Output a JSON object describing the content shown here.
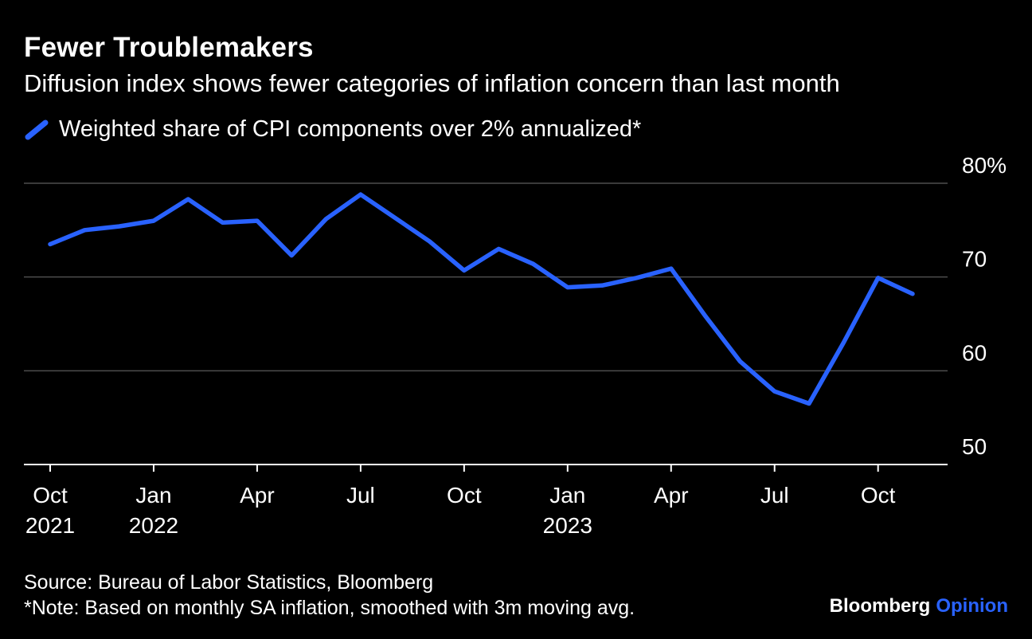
{
  "header": {
    "title": "Fewer Troublemakers",
    "subtitle": "Diffusion index shows fewer categories of inflation concern than last month"
  },
  "legend": {
    "label": "Weighted share of CPI components over 2% annualized*"
  },
  "chart_data": {
    "type": "line",
    "title": "Fewer Troublemakers",
    "subtitle": "Diffusion index shows fewer categories of inflation concern than last month",
    "xlabel": "",
    "ylabel": "Weighted share of CPI components over 2% annualized (%)",
    "ylim": [
      50,
      80
    ],
    "grid": "horizontal",
    "legend_position": "top-left",
    "y_axis_side": "right",
    "x": [
      "Oct 2021",
      "Nov 2021",
      "Dec 2021",
      "Jan 2022",
      "Feb 2022",
      "Mar 2022",
      "Apr 2022",
      "May 2022",
      "Jun 2022",
      "Jul 2022",
      "Aug 2022",
      "Sep 2022",
      "Oct 2022",
      "Nov 2022",
      "Dec 2022",
      "Jan 2023",
      "Feb 2023",
      "Mar 2023",
      "Apr 2023",
      "May 2023",
      "Jun 2023",
      "Jul 2023",
      "Aug 2023",
      "Sep 2023",
      "Oct 2023",
      "Nov 2023"
    ],
    "series": [
      {
        "name": "Weighted share of CPI components over 2% annualized*",
        "color": "#2962FF",
        "values": [
          73.5,
          75.0,
          75.4,
          76.0,
          78.3,
          75.8,
          76.0,
          72.3,
          76.2,
          78.8,
          76.3,
          73.8,
          70.7,
          73.0,
          71.4,
          68.9,
          69.1,
          69.9,
          70.9,
          65.8,
          61.0,
          57.8,
          56.5,
          63.0,
          69.9,
          68.2
        ]
      }
    ],
    "y_ticks": [
      {
        "value": 80,
        "label": "80%"
      },
      {
        "value": 70,
        "label": "70"
      },
      {
        "value": 60,
        "label": "60"
      },
      {
        "value": 50,
        "label": "50"
      }
    ],
    "x_ticks": [
      {
        "index": 0,
        "label": "Oct",
        "year": "2021"
      },
      {
        "index": 3,
        "label": "Jan",
        "year": "2022"
      },
      {
        "index": 6,
        "label": "Apr"
      },
      {
        "index": 9,
        "label": "Jul"
      },
      {
        "index": 12,
        "label": "Oct"
      },
      {
        "index": 15,
        "label": "Jan",
        "year": "2023"
      },
      {
        "index": 18,
        "label": "Apr"
      },
      {
        "index": 21,
        "label": "Jul"
      },
      {
        "index": 24,
        "label": "Oct"
      }
    ]
  },
  "footer": {
    "source": "Source: Bureau of Labor Statistics, Bloomberg",
    "note": "*Note: Based on monthly SA inflation, smoothed with 3m moving avg.",
    "logo": {
      "bloomberg": "Bloomberg",
      "opinion": "Opinion"
    }
  },
  "colors": {
    "background": "#000000",
    "text": "#ffffff",
    "grid": "#4d4d4d",
    "axis": "#ffffff",
    "series_blue": "#2962FF",
    "opinion_blue": "#2962FF"
  }
}
